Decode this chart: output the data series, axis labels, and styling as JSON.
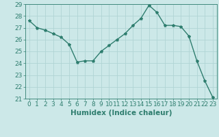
{
  "x": [
    0,
    1,
    2,
    3,
    4,
    5,
    6,
    7,
    8,
    9,
    10,
    11,
    12,
    13,
    14,
    15,
    16,
    17,
    18,
    19,
    20,
    21,
    22,
    23
  ],
  "y": [
    27.6,
    27.0,
    26.8,
    26.5,
    26.2,
    25.6,
    24.1,
    24.2,
    24.2,
    25.0,
    25.5,
    26.0,
    26.5,
    27.2,
    27.8,
    28.9,
    28.3,
    27.2,
    27.2,
    27.1,
    26.3,
    24.2,
    22.5,
    21.1
  ],
  "line_color": "#2e7d6e",
  "marker": "*",
  "marker_size": 3,
  "bg_color": "#cce8e8",
  "grid_color": "#b0d4d4",
  "xlabel": "Humidex (Indice chaleur)",
  "ylim": [
    21,
    29
  ],
  "xlim_min": -0.5,
  "xlim_max": 23.5,
  "yticks": [
    21,
    22,
    23,
    24,
    25,
    26,
    27,
    28,
    29
  ],
  "xticks": [
    0,
    1,
    2,
    3,
    4,
    5,
    6,
    7,
    8,
    9,
    10,
    11,
    12,
    13,
    14,
    15,
    16,
    17,
    18,
    19,
    20,
    21,
    22,
    23
  ],
  "tick_fontsize": 6.5,
  "label_fontsize": 7.5,
  "line_width": 1.0
}
